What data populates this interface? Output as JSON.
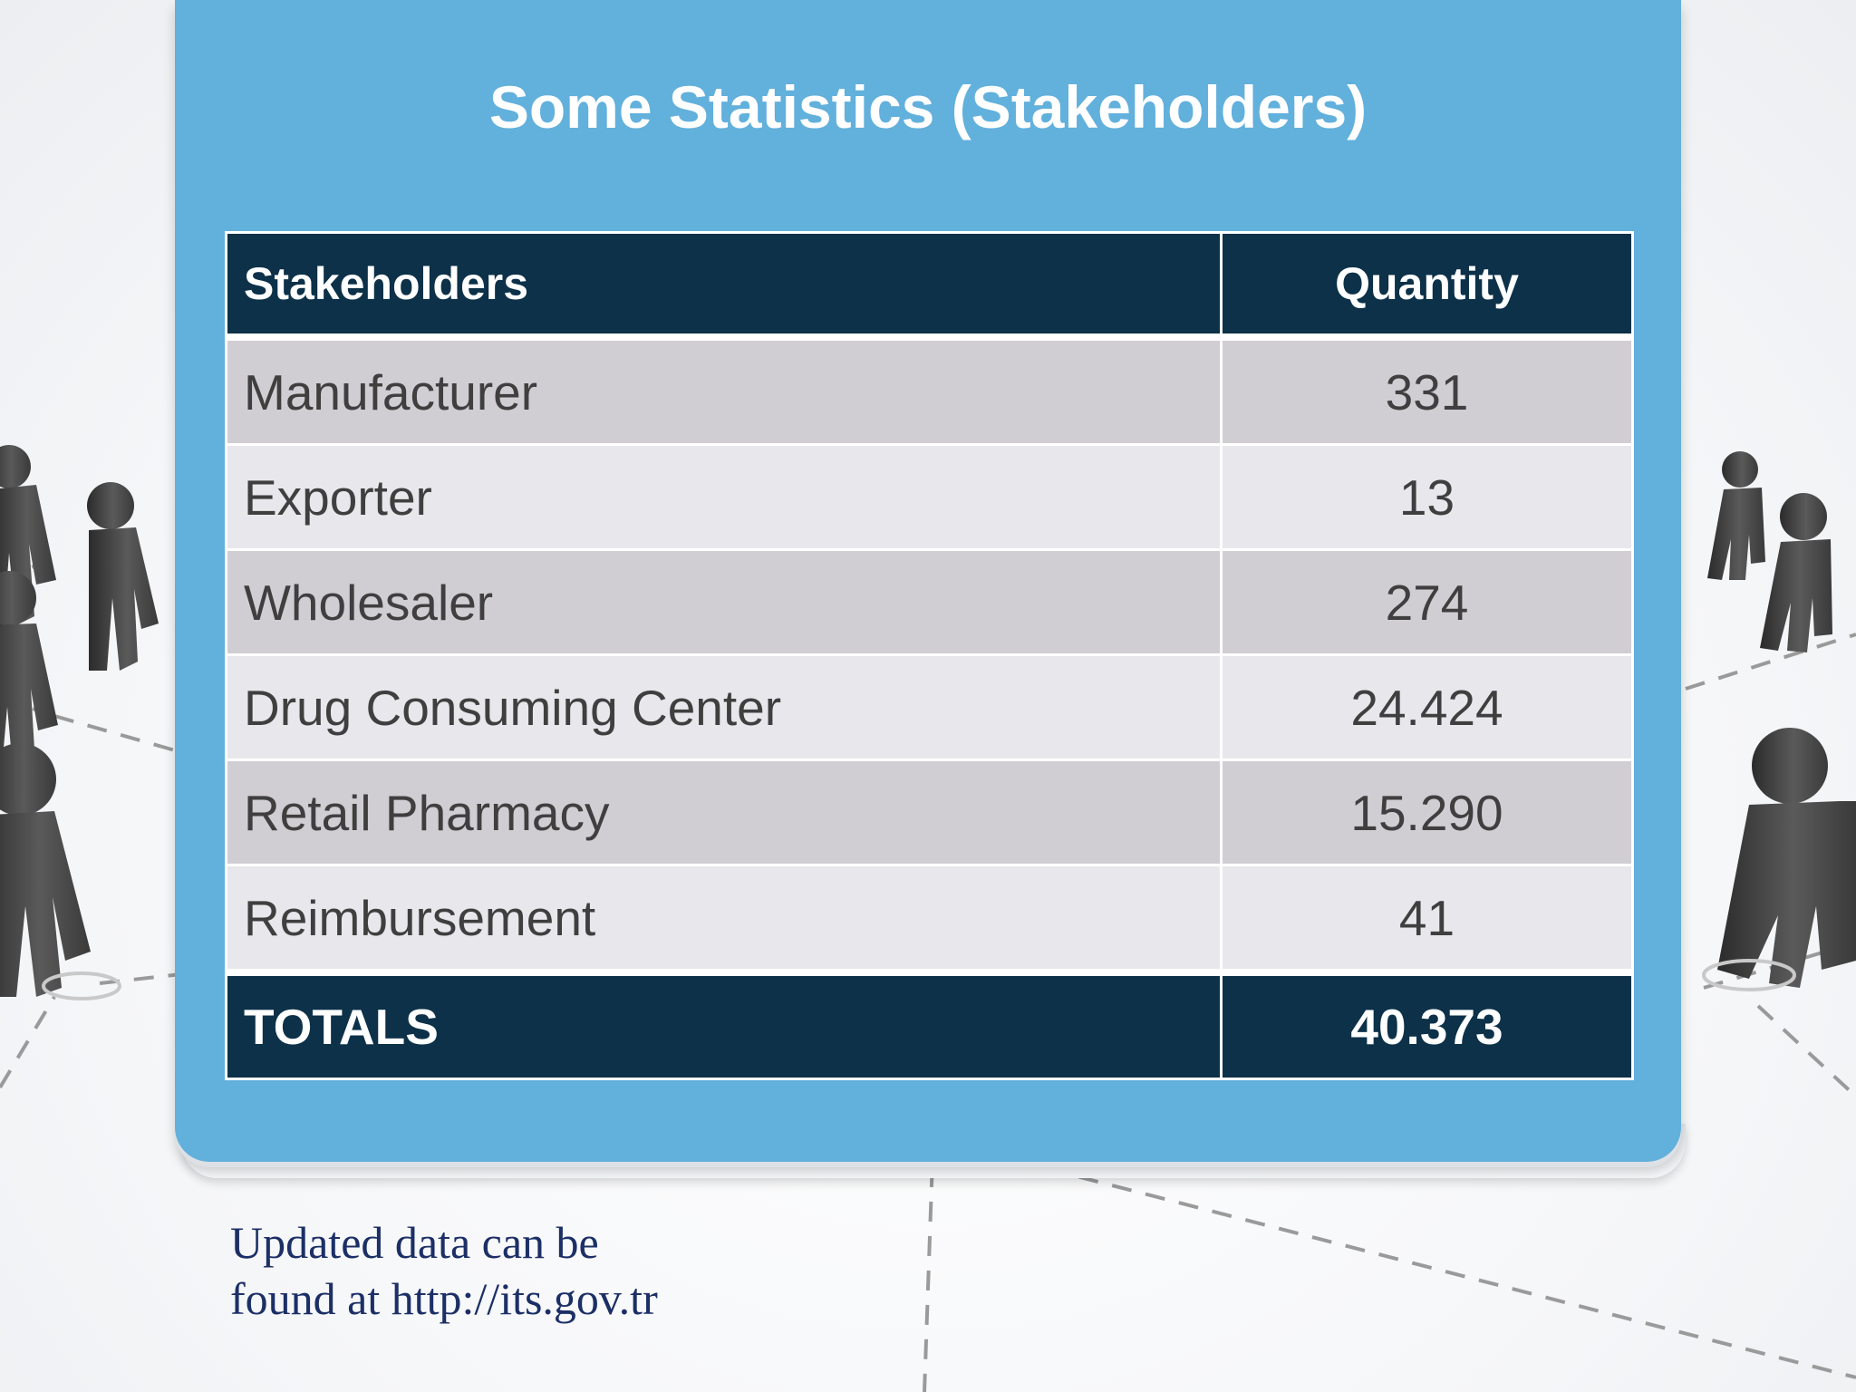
{
  "slide": {
    "title": "Some Statistics (Stakeholders)"
  },
  "table": {
    "header": {
      "name": "Stakeholders",
      "quantity": "Quantity"
    },
    "rows": [
      {
        "name": "Manufacturer",
        "quantity": "331"
      },
      {
        "name": "Exporter",
        "quantity": "13"
      },
      {
        "name": "Wholesaler",
        "quantity": "274"
      },
      {
        "name": "Drug Consuming Center",
        "quantity": "24.424"
      },
      {
        "name": "Retail Pharmacy",
        "quantity": "15.290"
      },
      {
        "name": "Reimbursement",
        "quantity": "41"
      }
    ],
    "totals": {
      "name": "TOTALS",
      "quantity": "40.373"
    }
  },
  "footnote": {
    "line1": "Updated data can be",
    "line2": "found at http://its.gov.tr"
  },
  "colors": {
    "panel": "#62b0dc",
    "table_header": "#0c3149",
    "row_dark": "#d1ced3",
    "row_light": "#e8e7eb",
    "footnote_text": "#1c2f66"
  },
  "background": {
    "image": "people-network-illustration"
  }
}
